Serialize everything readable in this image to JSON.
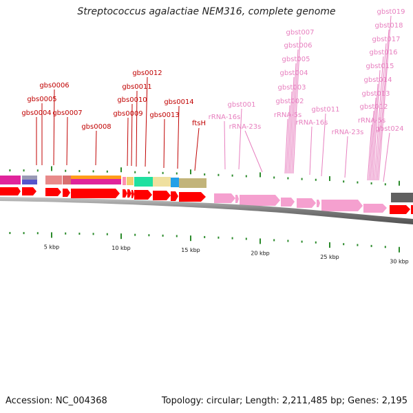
{
  "title": "Streptococcus agalactiae NEM316, complete genome",
  "footer": {
    "accession_label": "Accession: NC_004368",
    "summary": "Topology: circular; Length: 2,211,485 bp; Genes: 2,195"
  },
  "scale": {
    "ticks": [
      {
        "label": "5 kbp",
        "kbp": 5
      },
      {
        "label": "10 kbp",
        "kbp": 10
      },
      {
        "label": "15 kbp",
        "kbp": 15
      },
      {
        "label": "20 kbp",
        "kbp": 20
      },
      {
        "label": "25 kbp",
        "kbp": 25
      },
      {
        "label": "30 kbp",
        "kbp": 30
      }
    ]
  },
  "colors": {
    "cds": "#ff0000",
    "rna": "#f5a0cf",
    "backbone": "#808080",
    "tick": "#2a8a2a",
    "label_red": "#c00000",
    "label_pink": "#e77fbf"
  },
  "gene_labels": [
    {
      "name": "gbs0004",
      "kind": "cds"
    },
    {
      "name": "gbs0005",
      "kind": "cds"
    },
    {
      "name": "gbs0006",
      "kind": "cds"
    },
    {
      "name": "gbs0007",
      "kind": "cds"
    },
    {
      "name": "gbs0008",
      "kind": "cds"
    },
    {
      "name": "gbs0009",
      "kind": "cds"
    },
    {
      "name": "gbs0010",
      "kind": "cds"
    },
    {
      "name": "gbs0011",
      "kind": "cds"
    },
    {
      "name": "gbs0012",
      "kind": "cds"
    },
    {
      "name": "gbs0013",
      "kind": "cds"
    },
    {
      "name": "gbs0014",
      "kind": "cds"
    },
    {
      "name": "ftsH",
      "kind": "cds"
    },
    {
      "name": "rRNA-16s",
      "kind": "rna"
    },
    {
      "name": "gbst001",
      "kind": "rna"
    },
    {
      "name": "rRNA-23s",
      "kind": "rna"
    },
    {
      "name": "rRNA-5s",
      "kind": "rna"
    },
    {
      "name": "gbst002",
      "kind": "rna"
    },
    {
      "name": "gbst003",
      "kind": "rna"
    },
    {
      "name": "gbst004",
      "kind": "rna"
    },
    {
      "name": "gbst005",
      "kind": "rna"
    },
    {
      "name": "gbst006",
      "kind": "rna"
    },
    {
      "name": "gbst007",
      "kind": "rna"
    },
    {
      "name": "rRNA-16s",
      "kind": "rna"
    },
    {
      "name": "gbst011",
      "kind": "rna"
    },
    {
      "name": "rRNA-23s",
      "kind": "rna"
    },
    {
      "name": "rRNA-5s",
      "kind": "rna"
    },
    {
      "name": "gbst012",
      "kind": "rna"
    },
    {
      "name": "gbst013",
      "kind": "rna"
    },
    {
      "name": "gbst014",
      "kind": "rna"
    },
    {
      "name": "gbst015",
      "kind": "rna"
    },
    {
      "name": "gbst016",
      "kind": "rna"
    },
    {
      "name": "gbst017",
      "kind": "rna"
    },
    {
      "name": "gbst018",
      "kind": "rna"
    },
    {
      "name": "gbst019",
      "kind": "rna"
    },
    {
      "name": "gbst024",
      "kind": "rna"
    }
  ]
}
